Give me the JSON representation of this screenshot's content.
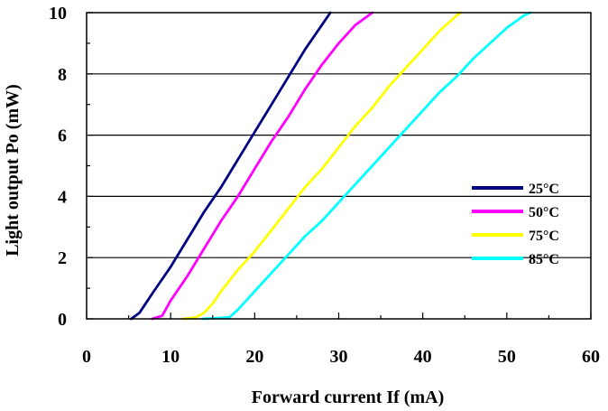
{
  "chart_data": {
    "type": "line",
    "title": "",
    "xlabel": "Forward current If (mA)",
    "ylabel": "Light output Po (mW)",
    "xlim": [
      0,
      60
    ],
    "ylim": [
      0,
      10
    ],
    "x_ticks": [
      "0",
      "10",
      "20",
      "30",
      "40",
      "50",
      "60"
    ],
    "y_ticks": [
      "0",
      "2",
      "4",
      "6",
      "8",
      "10"
    ],
    "grid": "horizontal",
    "legend": "right",
    "series": [
      {
        "name": "25°C",
        "color": "#000080",
        "points": [
          [
            5.3,
            0
          ],
          [
            6.3,
            0.2
          ],
          [
            8,
            0.9
          ],
          [
            10,
            1.7
          ],
          [
            12,
            2.6
          ],
          [
            14,
            3.5
          ],
          [
            16,
            4.3
          ],
          [
            18,
            5.2
          ],
          [
            20,
            6.1
          ],
          [
            22,
            7.0
          ],
          [
            24,
            7.9
          ],
          [
            26,
            8.8
          ],
          [
            28,
            9.6
          ],
          [
            29,
            10
          ]
        ]
      },
      {
        "name": "50°C",
        "color": "#FF00FF",
        "points": [
          [
            7.8,
            0
          ],
          [
            9,
            0.1
          ],
          [
            10,
            0.6
          ],
          [
            12,
            1.4
          ],
          [
            14,
            2.3
          ],
          [
            16,
            3.2
          ],
          [
            18,
            4.0
          ],
          [
            20,
            4.9
          ],
          [
            22,
            5.8
          ],
          [
            24,
            6.6
          ],
          [
            26,
            7.5
          ],
          [
            28,
            8.3
          ],
          [
            30,
            9.0
          ],
          [
            32,
            9.6
          ],
          [
            34,
            10
          ]
        ]
      },
      {
        "name": "75°C",
        "color": "#FFFF00",
        "points": [
          [
            11.5,
            0
          ],
          [
            13,
            0.05
          ],
          [
            14,
            0.2
          ],
          [
            15,
            0.5
          ],
          [
            16,
            0.9
          ],
          [
            18,
            1.6
          ],
          [
            20,
            2.2
          ],
          [
            22,
            2.9
          ],
          [
            24,
            3.6
          ],
          [
            26,
            4.3
          ],
          [
            28,
            4.9
          ],
          [
            30,
            5.6
          ],
          [
            32,
            6.3
          ],
          [
            34,
            6.9
          ],
          [
            36,
            7.6
          ],
          [
            38,
            8.2
          ],
          [
            40,
            8.8
          ],
          [
            42,
            9.4
          ],
          [
            44,
            9.9
          ],
          [
            44.5,
            10
          ]
        ]
      },
      {
        "name": "85°C",
        "color": "#00FFFF",
        "points": [
          [
            13.8,
            0
          ],
          [
            17,
            0.05
          ],
          [
            18,
            0.3
          ],
          [
            19,
            0.6
          ],
          [
            20,
            0.9
          ],
          [
            22,
            1.5
          ],
          [
            24,
            2.1
          ],
          [
            26,
            2.7
          ],
          [
            28,
            3.2
          ],
          [
            30,
            3.8
          ],
          [
            32,
            4.4
          ],
          [
            34,
            5.0
          ],
          [
            36,
            5.6
          ],
          [
            38,
            6.2
          ],
          [
            40,
            6.8
          ],
          [
            42,
            7.4
          ],
          [
            44,
            7.9
          ],
          [
            46,
            8.5
          ],
          [
            48,
            9.0
          ],
          [
            50,
            9.5
          ],
          [
            52,
            9.9
          ],
          [
            52.8,
            10
          ]
        ]
      }
    ]
  }
}
